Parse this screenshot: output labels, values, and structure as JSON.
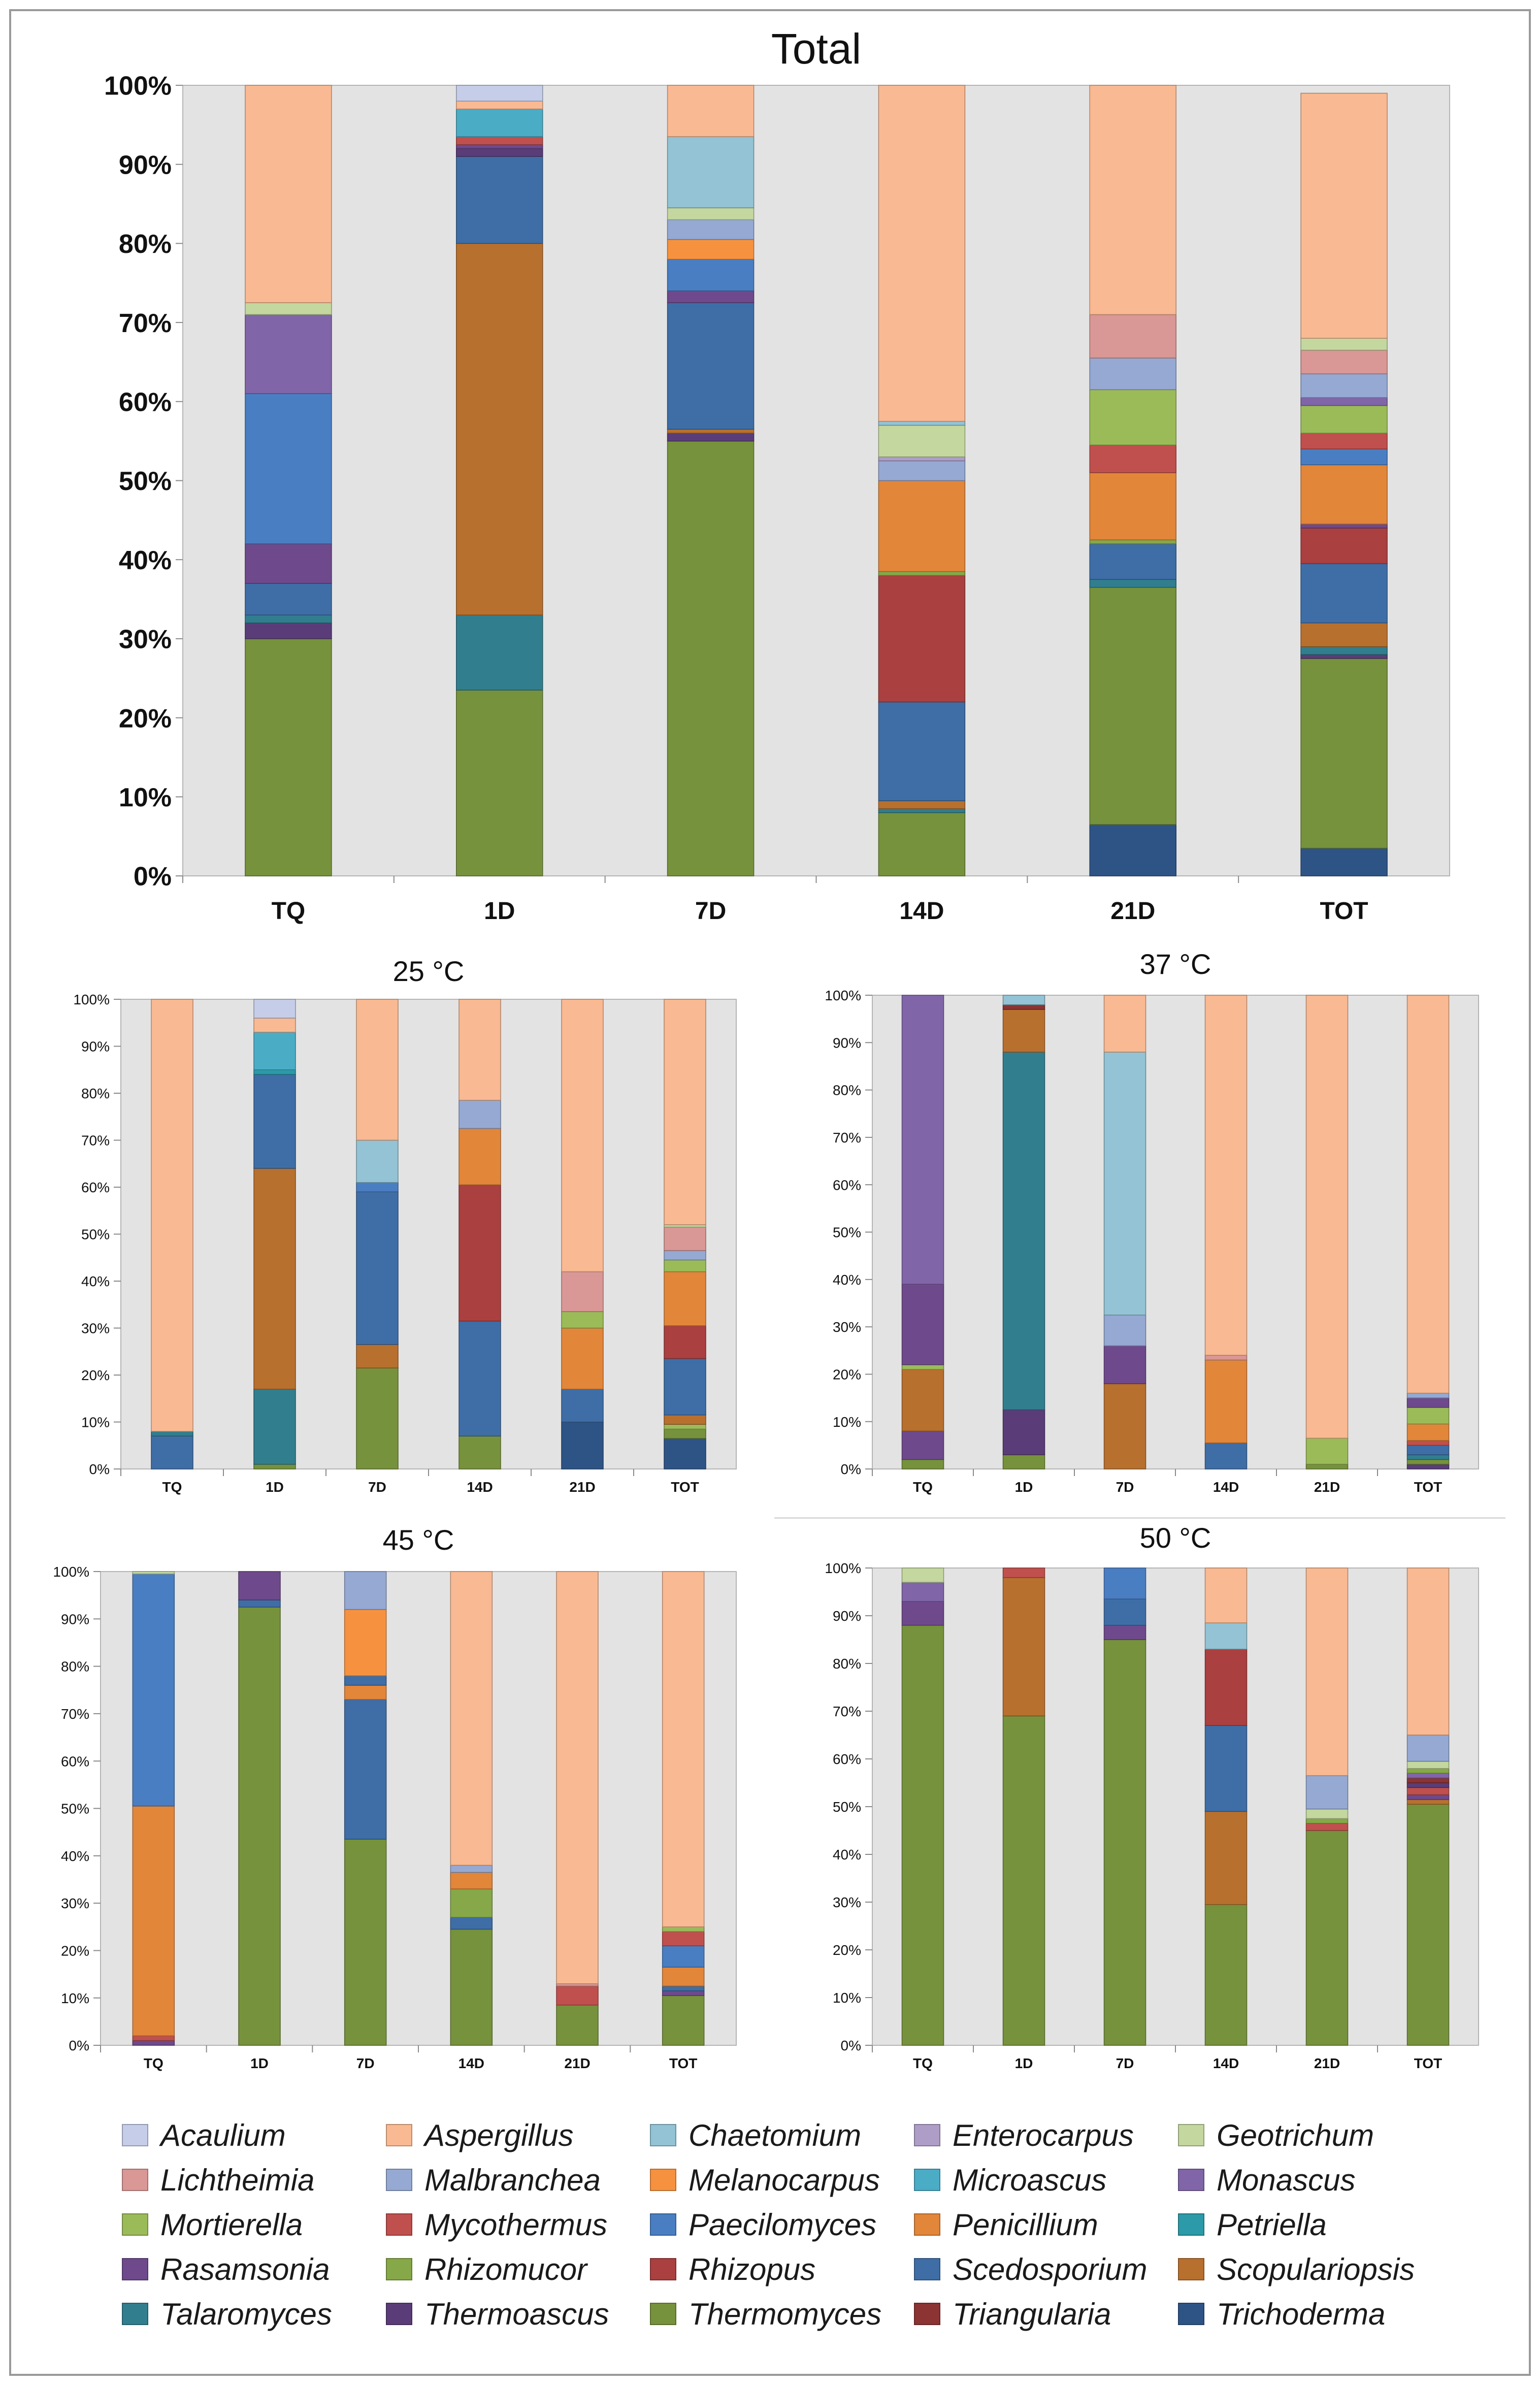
{
  "colors": {
    "Acaulium": "#c5cde8",
    "Aspergillus": "#f9b992",
    "Chaetomium": "#93c3d4",
    "Enterocarpus": "#ad9dc7",
    "Geotrichum": "#c3d79f",
    "Lichtheimia": "#d99795",
    "Malbranchea": "#95a9d3",
    "Melanocarpus": "#f6923f",
    "Microascus": "#4bacc6",
    "Monascus": "#8066a8",
    "Mortierella": "#9bbb59",
    "Mycothermus": "#c0504d",
    "Paecilomyces": "#4a7ec2",
    "Penicillium": "#e2863a",
    "Petriella": "#2c9aa8",
    "Rasamsonia": "#6e4a8c",
    "Rhizomucor": "#86a848",
    "Rhizopus": "#aa4040",
    "Scedosporium": "#3f6ea6",
    "Scopulariopsis": "#b8702f",
    "Talaromyces": "#317e8e",
    "Thermoascus": "#5a3d78",
    "Thermomyces": "#76923c",
    "Triangularia": "#8c3333",
    "Trichoderma": "#2e5486"
  },
  "legend": [
    "Acaulium",
    "Aspergillus",
    "Chaetomium",
    "Enterocarpus",
    "Geotrichum",
    "Lichtheimia",
    "Malbranchea",
    "Melanocarpus",
    "Microascus",
    "Monascus",
    "Mortierella",
    "Mycothermus",
    "Paecilomyces",
    "Penicillium",
    "Petriella",
    "Rasamsonia",
    "Rhizomucor",
    "Rhizopus",
    "Scedosporium",
    "Scopulariopsis",
    "Talaromyces",
    "Thermoascus",
    "Thermomyces",
    "Triangularia",
    "Trichoderma"
  ],
  "chart_data": [
    {
      "type": "bar",
      "stacked": true,
      "title": "Total",
      "categories": [
        "TQ",
        "1D",
        "7D",
        "14D",
        "21D",
        "TOT"
      ],
      "ylim": [
        0,
        100
      ],
      "yticks": [
        "0%",
        "10%",
        "20%",
        "30%",
        "40%",
        "50%",
        "60%",
        "70%",
        "80%",
        "90%",
        "100%"
      ],
      "grid": false,
      "bars": [
        [
          [
            "Thermomyces",
            30
          ],
          [
            "Thermoascus",
            2
          ],
          [
            "Talaromyces",
            1
          ],
          [
            "Scedosporium",
            4
          ],
          [
            "Rasamsonia",
            5
          ],
          [
            "Paecilomyces",
            19
          ],
          [
            "Monascus",
            10
          ],
          [
            "Geotrichum",
            1.5
          ],
          [
            "Aspergillus",
            27.5
          ]
        ],
        [
          [
            "Thermomyces",
            23.5
          ],
          [
            "Talaromyces",
            9.5
          ],
          [
            "Scopulariopsis",
            47
          ],
          [
            "Scedosporium",
            11
          ],
          [
            "Thermoascus",
            1
          ],
          [
            "Rasamsonia",
            0.5
          ],
          [
            "Mycothermus",
            1
          ],
          [
            "Microascus",
            3.5
          ],
          [
            "Aspergillus",
            1
          ],
          [
            "Acaulium",
            2
          ]
        ],
        [
          [
            "Thermomyces",
            55
          ],
          [
            "Thermoascus",
            1
          ],
          [
            "Scopulariopsis",
            0.5
          ],
          [
            "Scedosporium",
            16
          ],
          [
            "Rasamsonia",
            1.5
          ],
          [
            "Paecilomyces",
            4
          ],
          [
            "Melanocarpus",
            2.5
          ],
          [
            "Malbranchea",
            2.5
          ],
          [
            "Geotrichum",
            1.5
          ],
          [
            "Chaetomium",
            9
          ],
          [
            "Aspergillus",
            6.5
          ]
        ],
        [
          [
            "Thermomyces",
            8
          ],
          [
            "Talaromyces",
            0.5
          ],
          [
            "Scopulariopsis",
            1
          ],
          [
            "Scedosporium",
            12.5
          ],
          [
            "Rhizopus",
            16
          ],
          [
            "Rhizomucor",
            0.5
          ],
          [
            "Penicillium",
            11.5
          ],
          [
            "Malbranchea",
            2.5
          ],
          [
            "Enterocarpus",
            0.5
          ],
          [
            "Geotrichum",
            4
          ],
          [
            "Chaetomium",
            0.5
          ],
          [
            "Aspergillus",
            42.5
          ]
        ],
        [
          [
            "Trichoderma",
            6.5
          ],
          [
            "Thermomyces",
            30
          ],
          [
            "Talaromyces",
            1
          ],
          [
            "Scedosporium",
            4.5
          ],
          [
            "Rhizomucor",
            0.5
          ],
          [
            "Penicillium",
            8.5
          ],
          [
            "Mycothermus",
            3.5
          ],
          [
            "Mortierella",
            7
          ],
          [
            "Malbranchea",
            4
          ],
          [
            "Lichtheimia",
            5.5
          ],
          [
            "Aspergillus",
            29
          ]
        ],
        [
          [
            "Trichoderma",
            3.5
          ],
          [
            "Thermomyces",
            24
          ],
          [
            "Thermoascus",
            0.5
          ],
          [
            "Talaromyces",
            1
          ],
          [
            "Scopulariopsis",
            3
          ],
          [
            "Scedosporium",
            7.5
          ],
          [
            "Rhizopus",
            4.5
          ],
          [
            "Rasamsonia",
            0.5
          ],
          [
            "Penicillium",
            7.5
          ],
          [
            "Paecilomyces",
            2
          ],
          [
            "Mycothermus",
            2
          ],
          [
            "Mortierella",
            3.5
          ],
          [
            "Monascus",
            1
          ],
          [
            "Malbranchea",
            3
          ],
          [
            "Lichtheimia",
            3
          ],
          [
            "Geotrichum",
            1.5
          ],
          [
            "Aspergillus",
            31
          ]
        ]
      ]
    },
    {
      "type": "bar",
      "stacked": true,
      "title": "25 °C",
      "categories": [
        "TQ",
        "1D",
        "7D",
        "14D",
        "21D",
        "TOT"
      ],
      "ylim": [
        0,
        100
      ],
      "yticks": [
        "0%",
        "10%",
        "20%",
        "30%",
        "40%",
        "50%",
        "60%",
        "70%",
        "80%",
        "90%",
        "100%"
      ],
      "grid": false,
      "bars": [
        [
          [
            "Scedosporium",
            7
          ],
          [
            "Talaromyces",
            1
          ],
          [
            "Aspergillus",
            92
          ]
        ],
        [
          [
            "Thermomyces",
            1
          ],
          [
            "Talaromyces",
            16
          ],
          [
            "Scopulariopsis",
            47
          ],
          [
            "Scedosporium",
            20
          ],
          [
            "Petriella",
            1
          ],
          [
            "Microascus",
            8
          ],
          [
            "Aspergillus",
            3
          ],
          [
            "Acaulium",
            4
          ]
        ],
        [
          [
            "Thermomyces",
            21.5
          ],
          [
            "Scopulariopsis",
            5
          ],
          [
            "Scedosporium",
            32.5
          ],
          [
            "Paecilomyces",
            2
          ],
          [
            "Chaetomium",
            9
          ],
          [
            "Aspergillus",
            30
          ]
        ],
        [
          [
            "Thermomyces",
            7
          ],
          [
            "Scedosporium",
            24.5
          ],
          [
            "Rhizopus",
            29
          ],
          [
            "Penicillium",
            12
          ],
          [
            "Malbranchea",
            6
          ],
          [
            "Aspergillus",
            21.5
          ]
        ],
        [
          [
            "Trichoderma",
            10
          ],
          [
            "Scedosporium",
            7
          ],
          [
            "Penicillium",
            13
          ],
          [
            "Mortierella",
            3.5
          ],
          [
            "Lichtheimia",
            8.5
          ],
          [
            "Aspergillus",
            58
          ]
        ],
        [
          [
            "Trichoderma",
            6.5
          ],
          [
            "Thermomyces",
            2
          ],
          [
            "Mortierella",
            1
          ],
          [
            "Scopulariopsis",
            2
          ],
          [
            "Scedosporium",
            12
          ],
          [
            "Rhizopus",
            7
          ],
          [
            "Penicillium",
            11.5
          ],
          [
            "Mortierella",
            2.5
          ],
          [
            "Malbranchea",
            2
          ],
          [
            "Lichtheimia",
            5
          ],
          [
            "Geotrichum",
            0.5
          ],
          [
            "Aspergillus",
            48
          ]
        ]
      ]
    },
    {
      "type": "bar",
      "stacked": true,
      "title": "37 °C",
      "categories": [
        "TQ",
        "1D",
        "7D",
        "14D",
        "21D",
        "TOT"
      ],
      "ylim": [
        0,
        100
      ],
      "yticks": [
        "0%",
        "10%",
        "20%",
        "30%",
        "40%",
        "50%",
        "60%",
        "70%",
        "80%",
        "90%",
        "100%"
      ],
      "grid": false,
      "bars": [
        [
          [
            "Thermomyces",
            2
          ],
          [
            "Rasamsonia",
            6
          ],
          [
            "Scopulariopsis",
            13
          ],
          [
            "Mortierella",
            1
          ],
          [
            "Rasamsonia",
            17
          ],
          [
            "Monascus",
            61
          ]
        ],
        [
          [
            "Thermomyces",
            3
          ],
          [
            "Thermoascus",
            9.5
          ],
          [
            "Talaromyces",
            75.5
          ],
          [
            "Scopulariopsis",
            9
          ],
          [
            "Triangularia",
            1
          ],
          [
            "Chaetomium",
            2
          ]
        ],
        [
          [
            "Scopulariopsis",
            18
          ],
          [
            "Rasamsonia",
            8
          ],
          [
            "Malbranchea",
            6.5
          ],
          [
            "Chaetomium",
            55.5
          ],
          [
            "Aspergillus",
            12
          ]
        ],
        [
          [
            "Scedosporium",
            5.5
          ],
          [
            "Penicillium",
            17.5
          ],
          [
            "Lichtheimia",
            1
          ],
          [
            "Aspergillus",
            76
          ]
        ],
        [
          [
            "Thermomyces",
            1
          ],
          [
            "Mortierella",
            5.5
          ],
          [
            "Aspergillus",
            93.5
          ]
        ],
        [
          [
            "Thermoascus",
            1
          ],
          [
            "Thermomyces",
            1
          ],
          [
            "Talaromyces",
            1
          ],
          [
            "Scedosporium",
            2
          ],
          [
            "Mycothermus",
            1
          ],
          [
            "Penicillium",
            3.5
          ],
          [
            "Mortierella",
            3.5
          ],
          [
            "Rasamsonia",
            2
          ],
          [
            "Malbranchea",
            1
          ],
          [
            "Aspergillus",
            84
          ]
        ]
      ]
    },
    {
      "type": "bar",
      "stacked": true,
      "title": "45 °C",
      "categories": [
        "TQ",
        "1D",
        "7D",
        "14D",
        "21D",
        "TOT"
      ],
      "ylim": [
        0,
        100
      ],
      "yticks": [
        "0%",
        "10%",
        "20%",
        "30%",
        "40%",
        "50%",
        "60%",
        "70%",
        "80%",
        "90%",
        "100%"
      ],
      "grid": false,
      "bars": [
        [
          [
            "Rasamsonia",
            1
          ],
          [
            "Mycothermus",
            1
          ],
          [
            "Penicillium",
            48.5
          ],
          [
            "Paecilomyces",
            49
          ],
          [
            "Geotrichum",
            0.5
          ]
        ],
        [
          [
            "Thermomyces",
            92.5
          ],
          [
            "Scedosporium",
            1.5
          ],
          [
            "Rasamsonia",
            6
          ]
        ],
        [
          [
            "Thermomyces",
            43.5
          ],
          [
            "Scedosporium",
            29.5
          ],
          [
            "Penicillium",
            3
          ],
          [
            "Scedosporium",
            2
          ],
          [
            "Melanocarpus",
            14
          ],
          [
            "Malbranchea",
            8
          ]
        ],
        [
          [
            "Thermomyces",
            24.5
          ],
          [
            "Scedosporium",
            2.5
          ],
          [
            "Rhizomucor",
            6
          ],
          [
            "Penicillium",
            3.5
          ],
          [
            "Malbranchea",
            1.5
          ],
          [
            "Aspergillus",
            62
          ]
        ],
        [
          [
            "Thermomyces",
            8.5
          ],
          [
            "Mycothermus",
            4
          ],
          [
            "Lichtheimia",
            0.5
          ],
          [
            "Aspergillus",
            87
          ]
        ],
        [
          [
            "Thermomyces",
            10.5
          ],
          [
            "Rasamsonia",
            1
          ],
          [
            "Scedosporium",
            1
          ],
          [
            "Penicillium",
            4
          ],
          [
            "Paecilomyces",
            4.5
          ],
          [
            "Mycothermus",
            3
          ],
          [
            "Mortierella",
            1
          ],
          [
            "Aspergillus",
            75
          ]
        ]
      ]
    },
    {
      "type": "bar",
      "stacked": true,
      "title": "50 °C",
      "categories": [
        "TQ",
        "1D",
        "7D",
        "14D",
        "21D",
        "TOT"
      ],
      "ylim": [
        0,
        100
      ],
      "yticks": [
        "0%",
        "10%",
        "20%",
        "30%",
        "40%",
        "50%",
        "60%",
        "70%",
        "80%",
        "90%",
        "100%"
      ],
      "grid": false,
      "bars": [
        [
          [
            "Thermomyces",
            88
          ],
          [
            "Rasamsonia",
            5
          ],
          [
            "Monascus",
            4
          ],
          [
            "Geotrichum",
            3
          ]
        ],
        [
          [
            "Thermomyces",
            69
          ],
          [
            "Scopulariopsis",
            29
          ],
          [
            "Mycothermus",
            2
          ]
        ],
        [
          [
            "Thermomyces",
            85
          ],
          [
            "Rasamsonia",
            3
          ],
          [
            "Scedosporium",
            5.5
          ],
          [
            "Paecilomyces",
            6.5
          ]
        ],
        [
          [
            "Thermomyces",
            29.5
          ],
          [
            "Scopulariopsis",
            19.5
          ],
          [
            "Scedosporium",
            18
          ],
          [
            "Rhizopus",
            16
          ],
          [
            "Chaetomium",
            5.5
          ],
          [
            "Aspergillus",
            11.5
          ]
        ],
        [
          [
            "Thermomyces",
            45
          ],
          [
            "Mycothermus",
            1.5
          ],
          [
            "Rhizomucor",
            1
          ],
          [
            "Geotrichum",
            2
          ],
          [
            "Malbranchea",
            7
          ],
          [
            "Aspergillus",
            43.5
          ]
        ],
        [
          [
            "Thermomyces",
            50.5
          ],
          [
            "Scopulariopsis",
            1
          ],
          [
            "Rasamsonia",
            1
          ],
          [
            "Mycothermus",
            1.5
          ],
          [
            "Thermoascus",
            1
          ],
          [
            "Triangularia",
            1
          ],
          [
            "Monascus",
            1
          ],
          [
            "Rhizomucor",
            1
          ],
          [
            "Geotrichum",
            1.5
          ],
          [
            "Malbranchea",
            5.5
          ],
          [
            "Aspergillus",
            35
          ]
        ]
      ]
    }
  ]
}
